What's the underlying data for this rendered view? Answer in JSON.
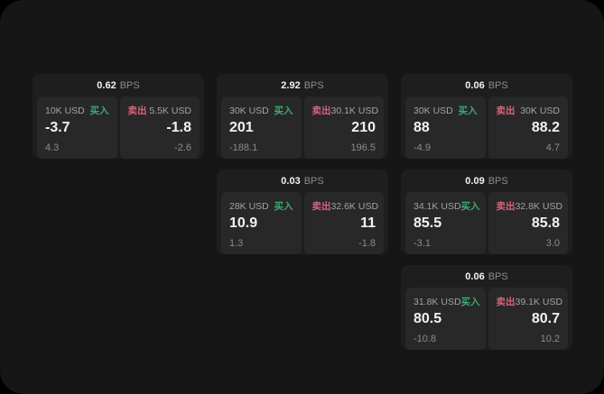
{
  "labels": {
    "bps": "BPS",
    "buy": "买入",
    "sell": "卖出"
  },
  "colors": {
    "window-bg": "#161616",
    "card-bg": "#1e1e1e",
    "panel-bg": "#282828",
    "value-text": "#f2f2f2",
    "label-text": "#a3a3a3",
    "muted-text": "#8b8b8b",
    "buy": "#3ea873",
    "sell": "#d5637c"
  },
  "cards": [
    {
      "row": 1,
      "col": 1,
      "bps": "0.62",
      "buy": {
        "amount": "10K USD",
        "value": "-3.7",
        "sub": "4.3"
      },
      "sell": {
        "amount": "5.5K USD",
        "value": "-1.8",
        "sub": "-2.6"
      }
    },
    {
      "row": 1,
      "col": 2,
      "bps": "2.92",
      "buy": {
        "amount": "30K USD",
        "value": "201",
        "sub": "-188.1"
      },
      "sell": {
        "amount": "30.1K USD",
        "value": "210",
        "sub": "196.5"
      }
    },
    {
      "row": 1,
      "col": 3,
      "bps": "0.06",
      "buy": {
        "amount": "30K USD",
        "value": "88",
        "sub": "-4.9"
      },
      "sell": {
        "amount": "30K USD",
        "value": "88.2",
        "sub": "4.7"
      }
    },
    {
      "row": 2,
      "col": 2,
      "bps": "0.03",
      "buy": {
        "amount": "28K USD",
        "value": "10.9",
        "sub": "1.3"
      },
      "sell": {
        "amount": "32.6K USD",
        "value": "11",
        "sub": "-1.8"
      }
    },
    {
      "row": 2,
      "col": 3,
      "bps": "0.09",
      "buy": {
        "amount": "34.1K USD",
        "value": "85.5",
        "sub": "-3.1"
      },
      "sell": {
        "amount": "32.8K USD",
        "value": "85.8",
        "sub": "3.0"
      }
    },
    {
      "row": 3,
      "col": 3,
      "bps": "0.06",
      "buy": {
        "amount": "31.8K USD",
        "value": "80.5",
        "sub": "-10.8"
      },
      "sell": {
        "amount": "39.1K USD",
        "value": "80.7",
        "sub": "10.2"
      }
    }
  ]
}
